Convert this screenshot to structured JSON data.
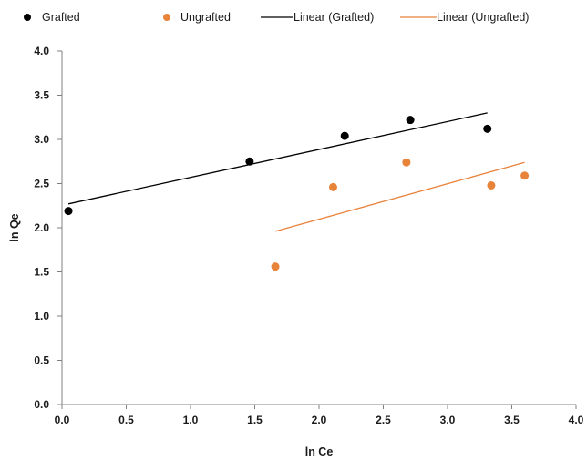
{
  "chart_data": {
    "type": "scatter",
    "title": "",
    "xlabel": "ln Ce",
    "ylabel": "ln Qe",
    "xlim": [
      0.0,
      4.0
    ],
    "ylim": [
      0.0,
      4.0
    ],
    "x_ticks": [
      "0.0",
      "0.5",
      "1.0",
      "1.5",
      "2.0",
      "2.5",
      "3.0",
      "3.5",
      "4.0"
    ],
    "y_ticks": [
      "0.0",
      "0.5",
      "1.0",
      "1.5",
      "2.0",
      "2.5",
      "3.0",
      "3.5",
      "4.0"
    ],
    "grid": false,
    "legend_position": "top",
    "series": [
      {
        "name": "Grafted",
        "kind": "points",
        "color": "#000000",
        "points": [
          [
            0.05,
            2.19
          ],
          [
            1.46,
            2.75
          ],
          [
            2.2,
            3.04
          ],
          [
            2.71,
            3.22
          ],
          [
            3.31,
            3.12
          ]
        ]
      },
      {
        "name": "Ungrafted",
        "kind": "points",
        "color": "#e8833a",
        "points": [
          [
            1.66,
            1.56
          ],
          [
            2.11,
            2.46
          ],
          [
            2.68,
            2.74
          ],
          [
            3.34,
            2.48
          ],
          [
            3.6,
            2.59
          ]
        ]
      },
      {
        "name": "Linear (Grafted)",
        "kind": "line",
        "color": "#000000",
        "points": [
          [
            0.05,
            2.27
          ],
          [
            3.31,
            3.3
          ]
        ]
      },
      {
        "name": "Linear (Ungrafted)",
        "kind": "line",
        "color": "#e8833a",
        "points": [
          [
            1.66,
            1.96
          ],
          [
            3.6,
            2.74
          ]
        ]
      }
    ]
  }
}
